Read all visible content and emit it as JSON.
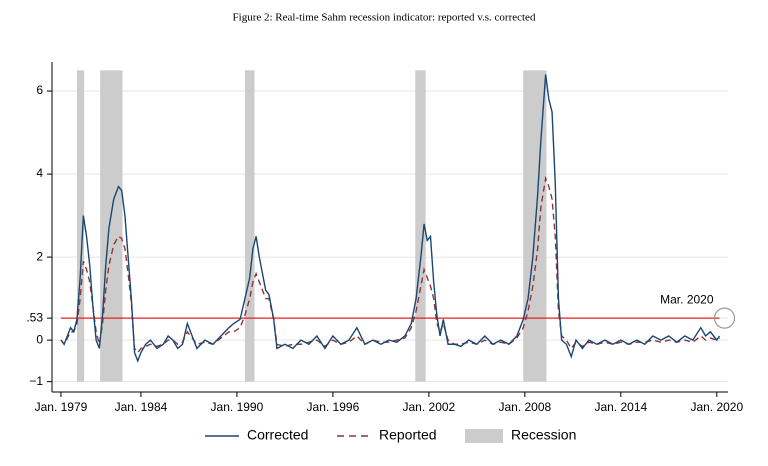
{
  "chart_data": {
    "type": "line",
    "title": "Figure 2: Real-time Sahm recession indicator: reported v.s. corrected",
    "x": [
      1979.0,
      1979.2,
      1979.4,
      1979.6,
      1979.8,
      1980.0,
      1980.2,
      1980.4,
      1980.6,
      1980.8,
      1981.0,
      1981.2,
      1981.4,
      1981.6,
      1981.8,
      1982.0,
      1982.3,
      1982.6,
      1982.8,
      1983.0,
      1983.2,
      1983.4,
      1983.6,
      1983.8,
      1984.0,
      1984.3,
      1984.6,
      1985.0,
      1985.4,
      1985.7,
      1986.0,
      1986.3,
      1986.6,
      1986.9,
      1987.2,
      1987.5,
      1988.0,
      1988.5,
      1989.0,
      1989.5,
      1989.8,
      1990.2,
      1990.5,
      1990.8,
      1991.0,
      1991.2,
      1991.4,
      1991.6,
      1991.8,
      1992.0,
      1992.3,
      1992.5,
      1993.0,
      1993.5,
      1994.0,
      1994.5,
      1995.0,
      1995.5,
      1996.0,
      1996.5,
      1997.0,
      1997.5,
      1998.0,
      1998.5,
      1999.0,
      1999.5,
      2000.0,
      2000.5,
      2000.9,
      2001.2,
      2001.5,
      2001.7,
      2001.9,
      2002.1,
      2002.3,
      2002.5,
      2002.7,
      2002.9,
      2003.2,
      2003.6,
      2004.0,
      2004.5,
      2005.0,
      2005.5,
      2006.0,
      2006.5,
      2007.0,
      2007.5,
      2007.9,
      2008.2,
      2008.5,
      2008.8,
      2009.0,
      2009.3,
      2009.5,
      2009.7,
      2009.9,
      2010.1,
      2010.3,
      2010.6,
      2010.9,
      2011.2,
      2011.6,
      2012.0,
      2012.5,
      2013.0,
      2013.5,
      2014.0,
      2014.5,
      2015.0,
      2015.5,
      2016.0,
      2016.5,
      2017.0,
      2017.5,
      2018.0,
      2018.5,
      2019.0,
      2019.3,
      2019.6,
      2020.0,
      2020.17
    ],
    "series": [
      {
        "name": "Corrected",
        "color": "#1a476f",
        "dash": false,
        "values": [
          0.0,
          -0.1,
          0.1,
          0.3,
          0.2,
          0.5,
          1.5,
          3.0,
          2.5,
          1.8,
          0.8,
          0.0,
          -0.2,
          0.6,
          1.8,
          2.7,
          3.4,
          3.7,
          3.6,
          3.0,
          2.0,
          1.0,
          -0.3,
          -0.5,
          -0.3,
          -0.1,
          0.0,
          -0.2,
          -0.1,
          0.1,
          0.0,
          -0.2,
          -0.1,
          0.4,
          0.1,
          -0.2,
          0.0,
          -0.1,
          0.1,
          0.3,
          0.4,
          0.5,
          1.0,
          1.5,
          2.2,
          2.5,
          2.0,
          1.6,
          1.2,
          1.1,
          0.5,
          -0.2,
          -0.1,
          -0.2,
          0.0,
          -0.1,
          0.1,
          -0.2,
          0.1,
          -0.1,
          0.0,
          0.3,
          -0.1,
          0.0,
          -0.1,
          0.0,
          -0.05,
          0.1,
          0.4,
          1.0,
          2.0,
          2.8,
          2.4,
          2.5,
          1.4,
          0.6,
          0.1,
          0.5,
          -0.1,
          -0.1,
          -0.15,
          0.0,
          -0.1,
          0.1,
          -0.1,
          0.0,
          -0.1,
          0.1,
          0.5,
          1.0,
          2.0,
          3.5,
          4.8,
          6.4,
          5.8,
          5.5,
          3.8,
          1.0,
          0.0,
          -0.1,
          -0.4,
          0.0,
          -0.2,
          0.0,
          -0.1,
          0.0,
          -0.1,
          0.0,
          -0.1,
          0.0,
          -0.1,
          0.1,
          0.0,
          0.1,
          -0.05,
          0.1,
          0.0,
          0.3,
          0.1,
          0.2,
          0.0,
          0.1
        ]
      },
      {
        "name": "Reported",
        "color": "#90353b",
        "dash": true,
        "values": [
          0.0,
          -0.1,
          0.05,
          0.2,
          0.2,
          0.4,
          1.0,
          1.9,
          1.7,
          1.4,
          0.8,
          0.2,
          -0.1,
          0.4,
          1.2,
          1.8,
          2.3,
          2.5,
          2.45,
          2.2,
          1.6,
          0.9,
          -0.2,
          -0.3,
          -0.2,
          -0.15,
          -0.1,
          -0.15,
          -0.1,
          0.0,
          0.0,
          -0.1,
          -0.05,
          0.2,
          0.05,
          -0.1,
          -0.05,
          -0.1,
          0.05,
          0.2,
          0.2,
          0.3,
          0.6,
          1.0,
          1.4,
          1.6,
          1.4,
          1.2,
          1.0,
          1.0,
          0.5,
          -0.1,
          -0.15,
          -0.1,
          -0.1,
          -0.05,
          0.0,
          -0.15,
          0.0,
          -0.1,
          -0.05,
          0.1,
          -0.1,
          0.0,
          -0.05,
          -0.05,
          0.0,
          0.05,
          0.3,
          0.7,
          1.3,
          1.7,
          1.5,
          1.3,
          1.0,
          0.4,
          0.2,
          0.4,
          0.0,
          -0.1,
          -0.1,
          -0.05,
          -0.1,
          0.0,
          -0.1,
          -0.05,
          -0.1,
          0.05,
          0.3,
          0.7,
          1.3,
          2.2,
          3.2,
          3.9,
          3.7,
          3.4,
          2.5,
          0.7,
          0.1,
          0.0,
          -0.2,
          -0.05,
          -0.15,
          -0.05,
          -0.1,
          -0.05,
          -0.1,
          -0.05,
          -0.1,
          -0.05,
          -0.05,
          0.0,
          -0.05,
          0.0,
          -0.05,
          0.0,
          -0.05,
          0.1,
          0.0,
          0.05,
          0.0,
          0.05
        ]
      }
    ],
    "shaded": {
      "name": "Recession",
      "color": "#cccccc",
      "y_range": [
        -1,
        6.5
      ],
      "ranges": [
        [
          1980.0,
          1980.45
        ],
        [
          1981.45,
          1982.85
        ],
        [
          1990.5,
          1991.1
        ],
        [
          2001.15,
          2001.8
        ],
        [
          2007.9,
          2009.35
        ]
      ]
    },
    "hline": {
      "value": 0.53,
      "color": "#e8211c",
      "x_range": [
        1979.0,
        2020.17
      ]
    },
    "annotation": {
      "text": "Mar. 2020",
      "x": 2020.17,
      "y": 0.53
    },
    "xlim": [
      1978.44,
      2020.7
    ],
    "ylim": [
      -1.25,
      6.7
    ],
    "xticks": [
      {
        "value": 1979,
        "label": "Jan. 1979"
      },
      {
        "value": 1984,
        "label": "Jan. 1984"
      },
      {
        "value": 1990,
        "label": "Jan. 1990"
      },
      {
        "value": 1996,
        "label": "Jan. 1996"
      },
      {
        "value": 2002,
        "label": "Jan. 2002"
      },
      {
        "value": 2008,
        "label": "Jan. 2008"
      },
      {
        "value": 2014,
        "label": "Jan. 2014"
      },
      {
        "value": 2020,
        "label": "Jan. 2020"
      }
    ],
    "yticks": [
      6,
      4,
      2,
      {
        "value": 0.53,
        "label": ".53"
      },
      0,
      {
        "value": -1,
        "label": "−1"
      }
    ],
    "grid": true
  }
}
